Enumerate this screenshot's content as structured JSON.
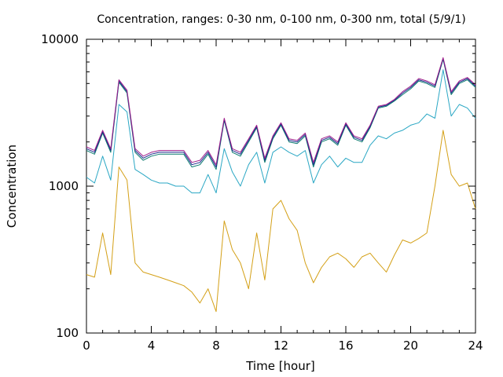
{
  "chart_data": {
    "type": "line",
    "title": "Concentration, ranges: 0-30 nm, 0-100 nm, 0-300 nm, total (5/9/1)",
    "xlabel": "Time [hour]",
    "ylabel": "Concentration",
    "xlim": [
      0,
      24
    ],
    "ylim": [
      100,
      10000
    ],
    "yscale": "log",
    "x_ticks": [
      0,
      4,
      8,
      12,
      16,
      20,
      24
    ],
    "x_tick_labels": [
      "0",
      "4",
      "8",
      "12",
      "16",
      "20",
      "24"
    ],
    "y_ticks": [
      100,
      1000,
      10000
    ],
    "y_tick_labels": [
      "100",
      "1000",
      "10000"
    ],
    "grid": false,
    "legend": "none",
    "x": [
      0,
      0.5,
      1,
      1.5,
      2,
      2.5,
      3,
      3.5,
      4,
      4.5,
      5,
      5.5,
      6,
      6.5,
      7,
      7.5,
      8,
      8.5,
      9,
      9.5,
      10,
      10.5,
      11,
      11.5,
      12,
      12.5,
      13,
      13.5,
      14,
      14.5,
      15,
      15.5,
      16,
      16.5,
      17,
      17.5,
      18,
      18.5,
      19,
      19.5,
      20,
      20.5,
      21,
      21.5,
      22,
      22.5,
      23,
      23.5,
      24
    ],
    "series": [
      {
        "color": "#d4a017",
        "values": [
          250,
          240,
          480,
          250,
          1350,
          1100,
          300,
          260,
          250,
          240,
          230,
          220,
          210,
          190,
          160,
          200,
          140,
          580,
          370,
          300,
          200,
          480,
          230,
          700,
          800,
          600,
          500,
          300,
          220,
          280,
          330,
          350,
          320,
          280,
          330,
          350,
          300,
          260,
          340,
          430,
          410,
          440,
          480,
          1000,
          2400,
          1200,
          1000,
          1050,
          700
        ]
      },
      {
        "color": "#2aa7c4",
        "values": [
          1150,
          1050,
          1600,
          1100,
          3600,
          3200,
          1300,
          1200,
          1100,
          1050,
          1050,
          1000,
          1000,
          900,
          900,
          1200,
          900,
          1800,
          1250,
          1000,
          1400,
          1700,
          1050,
          1700,
          1850,
          1700,
          1600,
          1750,
          1050,
          1400,
          1600,
          1350,
          1550,
          1450,
          1450,
          1900,
          2200,
          2100,
          2300,
          2400,
          2600,
          2700,
          3100,
          2900,
          6200,
          3000,
          3600,
          3400,
          2900
        ]
      },
      {
        "color": "#0a7a6e",
        "values": [
          1750,
          1650,
          2300,
          1700,
          5100,
          4300,
          1700,
          1500,
          1600,
          1650,
          1650,
          1650,
          1650,
          1350,
          1400,
          1650,
          1300,
          2800,
          1700,
          1600,
          2000,
          2500,
          1450,
          2100,
          2600,
          2000,
          1950,
          2200,
          1350,
          2000,
          2100,
          1900,
          2600,
          2100,
          2000,
          2500,
          3400,
          3500,
          3800,
          4200,
          4600,
          5200,
          5000,
          4700,
          7300,
          4200,
          5000,
          5300,
          4700
        ]
      },
      {
        "color": "#1a2a8c",
        "values": [
          1800,
          1700,
          2350,
          1750,
          5200,
          4400,
          1750,
          1550,
          1650,
          1700,
          1700,
          1700,
          1700,
          1400,
          1450,
          1700,
          1350,
          2850,
          1750,
          1650,
          2050,
          2550,
          1500,
          2150,
          2650,
          2050,
          2000,
          2250,
          1400,
          2050,
          2150,
          1950,
          2650,
          2150,
          2050,
          2550,
          3450,
          3550,
          3850,
          4300,
          4700,
          5300,
          5100,
          4800,
          7400,
          4300,
          5100,
          5400,
          4800
        ]
      },
      {
        "color": "#a0208c",
        "values": [
          1850,
          1750,
          2400,
          1800,
          5300,
          4500,
          1800,
          1600,
          1700,
          1750,
          1750,
          1750,
          1750,
          1450,
          1500,
          1750,
          1400,
          2900,
          1800,
          1700,
          2100,
          2600,
          1550,
          2200,
          2700,
          2100,
          2050,
          2300,
          1450,
          2100,
          2200,
          2000,
          2700,
          2200,
          2100,
          2600,
          3500,
          3600,
          3900,
          4400,
          4800,
          5400,
          5200,
          4900,
          7500,
          4400,
          5200,
          5500,
          4900
        ]
      }
    ]
  }
}
